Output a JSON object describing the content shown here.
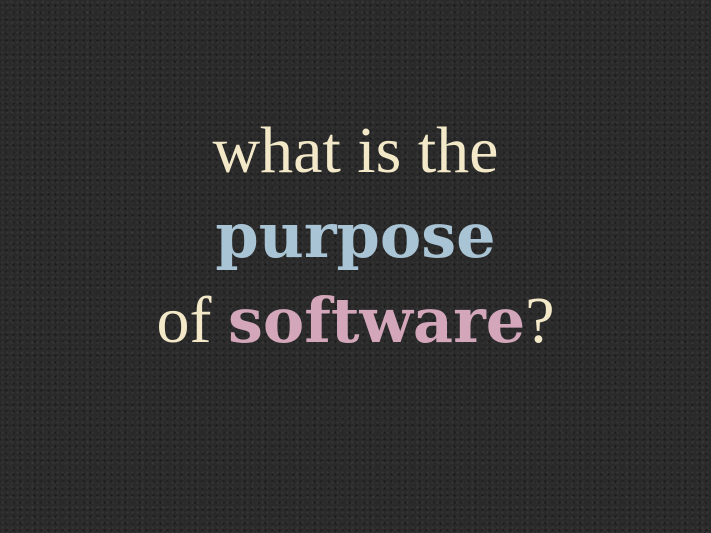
{
  "slide": {
    "line1": "what is the",
    "line2": "purpose",
    "line3_prefix": "of ",
    "line3_emphasis": "software",
    "line3_suffix": "?"
  },
  "colors": {
    "background": "#2a2a2a",
    "text_cream": "#f3e9c9",
    "accent_blue": "#a8c4d5",
    "accent_pink": "#d3a6b9"
  }
}
